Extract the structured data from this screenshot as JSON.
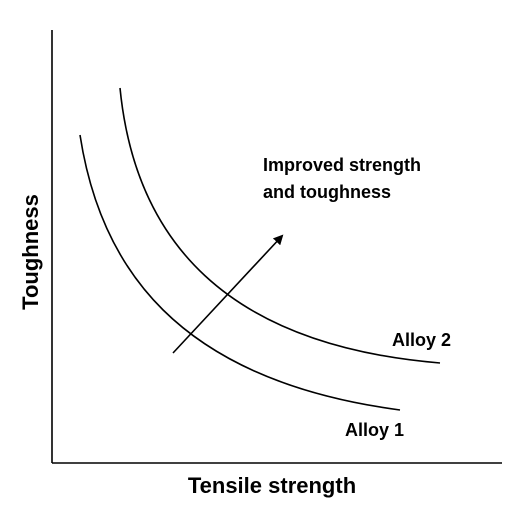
{
  "axes": {
    "x_label": "Tensile strength",
    "y_label": "Toughness"
  },
  "curves": [
    {
      "label": "Alloy 1"
    },
    {
      "label": "Alloy 2"
    }
  ],
  "annotation": {
    "lines": [
      "Improved strength",
      "and toughness"
    ]
  }
}
